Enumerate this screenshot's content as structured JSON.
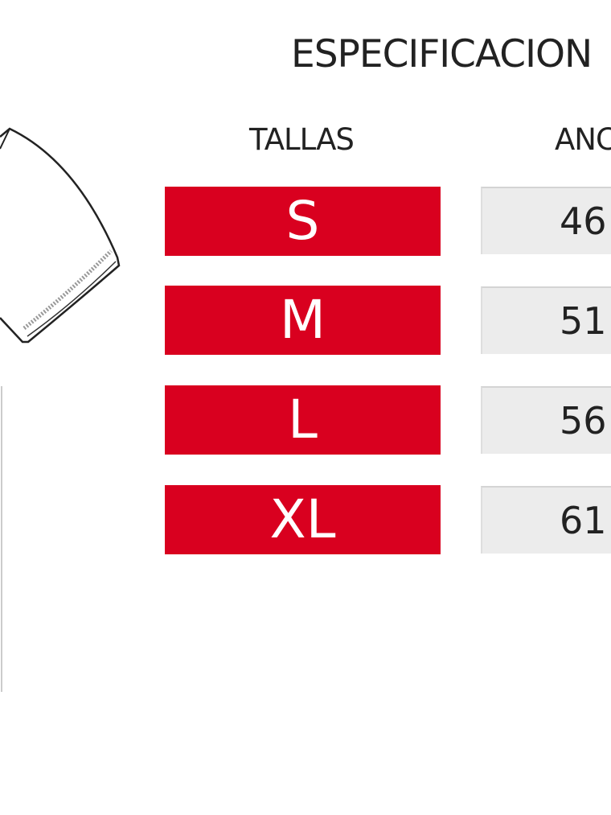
{
  "title": "ESPECIFICACION",
  "headers": {
    "sizes": "TALLAS",
    "width": "ANC"
  },
  "rows": [
    {
      "size": "S",
      "width": "46"
    },
    {
      "size": "M",
      "width": "51"
    },
    {
      "size": "L",
      "width": "56"
    },
    {
      "size": "XL",
      "width": "61"
    }
  ],
  "colors": {
    "size_bg": "#d9001f",
    "value_bg": "#ececec"
  }
}
